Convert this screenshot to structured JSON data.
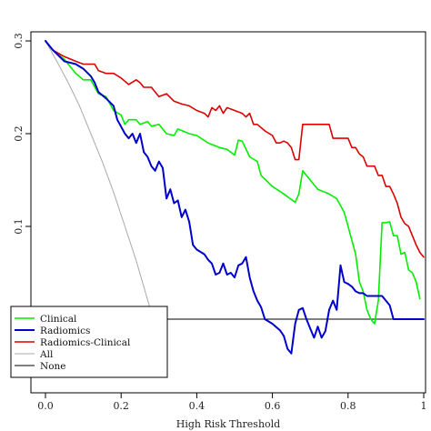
{
  "chart_data": {
    "type": "line",
    "title": "",
    "xlabel": "High Risk Threshold",
    "ylabel": "",
    "xlim": [
      0,
      1
    ],
    "ylim": [
      -0.04,
      0.3
    ],
    "x_ticks": [
      0.0,
      0.2,
      0.4,
      0.6,
      0.8,
      1.0
    ],
    "x_tick_labels": [
      "0.0",
      "0.2",
      "0.4",
      "0.6",
      "0.8",
      "1"
    ],
    "y_ticks": [
      0.0,
      0.1,
      0.2,
      0.3
    ],
    "y_tick_labels": [
      "0.0",
      "0.1",
      "0.2",
      "0.3"
    ],
    "grid": false,
    "legend_position": "bottom-left",
    "series": [
      {
        "name": "Clinical",
        "color": "#00ee00",
        "width": 1.6,
        "points": [
          [
            0.0,
            0.3
          ],
          [
            0.02,
            0.29
          ],
          [
            0.05,
            0.28
          ],
          [
            0.08,
            0.265
          ],
          [
            0.1,
            0.258
          ],
          [
            0.12,
            0.258
          ],
          [
            0.14,
            0.243
          ],
          [
            0.16,
            0.24
          ],
          [
            0.18,
            0.225
          ],
          [
            0.2,
            0.22
          ],
          [
            0.21,
            0.21
          ],
          [
            0.22,
            0.215
          ],
          [
            0.24,
            0.215
          ],
          [
            0.25,
            0.21
          ],
          [
            0.27,
            0.213
          ],
          [
            0.28,
            0.208
          ],
          [
            0.3,
            0.21
          ],
          [
            0.32,
            0.2
          ],
          [
            0.34,
            0.198
          ],
          [
            0.35,
            0.205
          ],
          [
            0.38,
            0.2
          ],
          [
            0.4,
            0.198
          ],
          [
            0.43,
            0.19
          ],
          [
            0.46,
            0.185
          ],
          [
            0.48,
            0.183
          ],
          [
            0.5,
            0.177
          ],
          [
            0.51,
            0.193
          ],
          [
            0.52,
            0.192
          ],
          [
            0.54,
            0.175
          ],
          [
            0.56,
            0.17
          ],
          [
            0.57,
            0.155
          ],
          [
            0.6,
            0.143
          ],
          [
            0.63,
            0.135
          ],
          [
            0.66,
            0.126
          ],
          [
            0.67,
            0.135
          ],
          [
            0.68,
            0.16
          ],
          [
            0.69,
            0.155
          ],
          [
            0.7,
            0.15
          ],
          [
            0.72,
            0.14
          ],
          [
            0.75,
            0.135
          ],
          [
            0.77,
            0.13
          ],
          [
            0.79,
            0.115
          ],
          [
            0.8,
            0.1
          ],
          [
            0.82,
            0.07
          ],
          [
            0.83,
            0.04
          ],
          [
            0.84,
            0.03
          ],
          [
            0.85,
            0.01
          ],
          [
            0.86,
            0.0
          ],
          [
            0.87,
            -0.005
          ],
          [
            0.88,
            0.02
          ],
          [
            0.89,
            0.104
          ],
          [
            0.9,
            0.104
          ],
          [
            0.91,
            0.105
          ],
          [
            0.92,
            0.09
          ],
          [
            0.93,
            0.09
          ],
          [
            0.94,
            0.07
          ],
          [
            0.95,
            0.072
          ],
          [
            0.96,
            0.053
          ],
          [
            0.97,
            0.05
          ],
          [
            0.98,
            0.04
          ],
          [
            0.99,
            0.022
          ]
        ]
      },
      {
        "name": "Radiomics",
        "color": "#0000cc",
        "width": 2.0,
        "points": [
          [
            0.0,
            0.3
          ],
          [
            0.02,
            0.29
          ],
          [
            0.05,
            0.278
          ],
          [
            0.08,
            0.275
          ],
          [
            0.1,
            0.27
          ],
          [
            0.12,
            0.262
          ],
          [
            0.13,
            0.255
          ],
          [
            0.14,
            0.245
          ],
          [
            0.16,
            0.238
          ],
          [
            0.18,
            0.23
          ],
          [
            0.19,
            0.215
          ],
          [
            0.21,
            0.2
          ],
          [
            0.22,
            0.195
          ],
          [
            0.23,
            0.2
          ],
          [
            0.24,
            0.19
          ],
          [
            0.25,
            0.2
          ],
          [
            0.26,
            0.18
          ],
          [
            0.27,
            0.175
          ],
          [
            0.28,
            0.165
          ],
          [
            0.29,
            0.16
          ],
          [
            0.3,
            0.17
          ],
          [
            0.31,
            0.163
          ],
          [
            0.32,
            0.13
          ],
          [
            0.33,
            0.14
          ],
          [
            0.34,
            0.125
          ],
          [
            0.35,
            0.128
          ],
          [
            0.36,
            0.11
          ],
          [
            0.37,
            0.118
          ],
          [
            0.38,
            0.105
          ],
          [
            0.39,
            0.08
          ],
          [
            0.4,
            0.075
          ],
          [
            0.42,
            0.07
          ],
          [
            0.43,
            0.064
          ],
          [
            0.44,
            0.06
          ],
          [
            0.45,
            0.048
          ],
          [
            0.46,
            0.05
          ],
          [
            0.47,
            0.06
          ],
          [
            0.48,
            0.048
          ],
          [
            0.49,
            0.05
          ],
          [
            0.5,
            0.045
          ],
          [
            0.51,
            0.058
          ],
          [
            0.52,
            0.06
          ],
          [
            0.53,
            0.067
          ],
          [
            0.54,
            0.045
          ],
          [
            0.55,
            0.03
          ],
          [
            0.56,
            0.02
          ],
          [
            0.57,
            0.013
          ],
          [
            0.58,
            0.0
          ],
          [
            0.6,
            -0.005
          ],
          [
            0.62,
            -0.012
          ],
          [
            0.63,
            -0.018
          ],
          [
            0.64,
            -0.032
          ],
          [
            0.65,
            -0.037
          ],
          [
            0.66,
            -0.005
          ],
          [
            0.67,
            0.01
          ],
          [
            0.68,
            0.012
          ],
          [
            0.69,
            0.0
          ],
          [
            0.7,
            -0.01
          ],
          [
            0.71,
            -0.02
          ],
          [
            0.72,
            -0.008
          ],
          [
            0.73,
            -0.02
          ],
          [
            0.74,
            -0.013
          ],
          [
            0.75,
            0.01
          ],
          [
            0.76,
            0.02
          ],
          [
            0.77,
            0.01
          ],
          [
            0.78,
            0.058
          ],
          [
            0.79,
            0.04
          ],
          [
            0.8,
            0.038
          ],
          [
            0.81,
            0.035
          ],
          [
            0.82,
            0.03
          ],
          [
            0.83,
            0.028
          ],
          [
            0.84,
            0.028
          ],
          [
            0.85,
            0.025
          ],
          [
            0.86,
            0.025
          ],
          [
            0.87,
            0.025
          ],
          [
            0.88,
            0.025
          ],
          [
            0.89,
            0.025
          ],
          [
            0.9,
            0.02
          ],
          [
            0.91,
            0.015
          ],
          [
            0.92,
            0.0
          ],
          [
            0.93,
            0.0
          ],
          [
            0.96,
            0.0
          ],
          [
            1.0,
            0.0
          ]
        ]
      },
      {
        "name": "Radiomics-Clinical",
        "color": "#dd0000",
        "width": 1.6,
        "points": [
          [
            0.0,
            0.3
          ],
          [
            0.02,
            0.29
          ],
          [
            0.05,
            0.283
          ],
          [
            0.08,
            0.278
          ],
          [
            0.1,
            0.275
          ],
          [
            0.13,
            0.275
          ],
          [
            0.14,
            0.268
          ],
          [
            0.16,
            0.265
          ],
          [
            0.18,
            0.265
          ],
          [
            0.2,
            0.26
          ],
          [
            0.22,
            0.253
          ],
          [
            0.24,
            0.258
          ],
          [
            0.25,
            0.255
          ],
          [
            0.26,
            0.25
          ],
          [
            0.28,
            0.25
          ],
          [
            0.29,
            0.245
          ],
          [
            0.3,
            0.24
          ],
          [
            0.32,
            0.243
          ],
          [
            0.34,
            0.235
          ],
          [
            0.36,
            0.232
          ],
          [
            0.38,
            0.23
          ],
          [
            0.4,
            0.225
          ],
          [
            0.42,
            0.222
          ],
          [
            0.43,
            0.218
          ],
          [
            0.44,
            0.228
          ],
          [
            0.45,
            0.225
          ],
          [
            0.46,
            0.23
          ],
          [
            0.47,
            0.222
          ],
          [
            0.48,
            0.228
          ],
          [
            0.5,
            0.225
          ],
          [
            0.52,
            0.222
          ],
          [
            0.53,
            0.218
          ],
          [
            0.54,
            0.222
          ],
          [
            0.55,
            0.21
          ],
          [
            0.56,
            0.21
          ],
          [
            0.58,
            0.203
          ],
          [
            0.6,
            0.198
          ],
          [
            0.61,
            0.19
          ],
          [
            0.62,
            0.19
          ],
          [
            0.63,
            0.192
          ],
          [
            0.64,
            0.19
          ],
          [
            0.65,
            0.185
          ],
          [
            0.66,
            0.172
          ],
          [
            0.67,
            0.172
          ],
          [
            0.68,
            0.21
          ],
          [
            0.69,
            0.21
          ],
          [
            0.72,
            0.21
          ],
          [
            0.74,
            0.21
          ],
          [
            0.75,
            0.21
          ],
          [
            0.76,
            0.195
          ],
          [
            0.78,
            0.195
          ],
          [
            0.8,
            0.195
          ],
          [
            0.81,
            0.185
          ],
          [
            0.82,
            0.185
          ],
          [
            0.83,
            0.178
          ],
          [
            0.84,
            0.175
          ],
          [
            0.85,
            0.165
          ],
          [
            0.86,
            0.165
          ],
          [
            0.87,
            0.165
          ],
          [
            0.88,
            0.155
          ],
          [
            0.89,
            0.155
          ],
          [
            0.9,
            0.143
          ],
          [
            0.91,
            0.143
          ],
          [
            0.92,
            0.135
          ],
          [
            0.93,
            0.125
          ],
          [
            0.94,
            0.11
          ],
          [
            0.95,
            0.103
          ],
          [
            0.96,
            0.1
          ],
          [
            0.97,
            0.09
          ],
          [
            0.98,
            0.08
          ],
          [
            0.99,
            0.072
          ],
          [
            1.0,
            0.067
          ]
        ]
      },
      {
        "name": "All",
        "color": "#aaaaaa",
        "width": 1.0,
        "points": [
          [
            0.0,
            0.3
          ],
          [
            0.03,
            0.278
          ],
          [
            0.06,
            0.255
          ],
          [
            0.09,
            0.23
          ],
          [
            0.12,
            0.2
          ],
          [
            0.15,
            0.17
          ],
          [
            0.18,
            0.137
          ],
          [
            0.21,
            0.1
          ],
          [
            0.24,
            0.063
          ],
          [
            0.27,
            0.021
          ],
          [
            0.3,
            -0.02
          ],
          [
            0.32,
            -0.047
          ]
        ]
      },
      {
        "name": "None",
        "color": "#000000",
        "width": 1.0,
        "points": [
          [
            0.0,
            0.0
          ],
          [
            1.0,
            0.0
          ]
        ]
      }
    ]
  }
}
